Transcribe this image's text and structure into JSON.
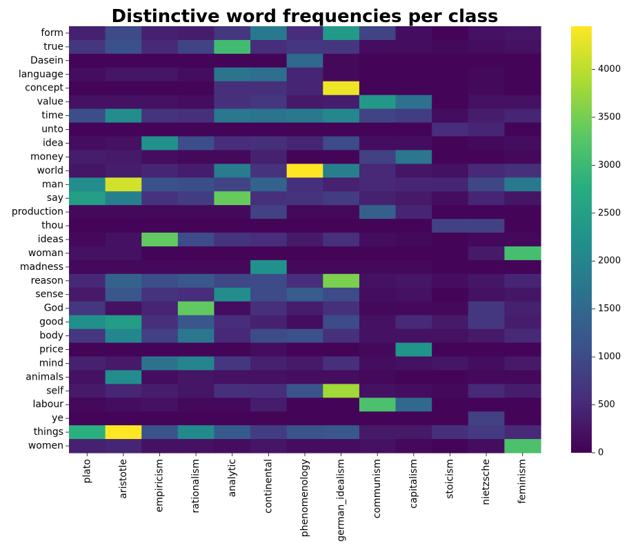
{
  "chart_data": {
    "type": "heatmap",
    "title": "Distinctive word frequencies per class",
    "xlabel": "",
    "ylabel": "",
    "colormap": "viridis",
    "vmin": 0,
    "vmax": 4450,
    "x": [
      "plato",
      "aristotle",
      "empiricism",
      "rationalism",
      "analytic",
      "continental",
      "phenomenology",
      "german_idealism",
      "communism",
      "capitalism",
      "stoicism",
      "nietzsche",
      "feminism"
    ],
    "y": [
      "form",
      "true",
      "Dasein",
      "language",
      "concept",
      "value",
      "time",
      "unto",
      "idea",
      "money",
      "world",
      "man",
      "say",
      "production",
      "thou",
      "ideas",
      "woman",
      "madness",
      "reason",
      "sense",
      "God",
      "good",
      "body",
      "price",
      "mind",
      "animals",
      "self",
      "labour",
      "ye",
      "things",
      "women"
    ],
    "values": [
      [
        400,
        1000,
        400,
        350,
        700,
        1800,
        550,
        2400,
        900,
        150,
        50,
        200,
        250
      ],
      [
        700,
        1100,
        500,
        900,
        3050,
        550,
        700,
        700,
        150,
        150,
        100,
        150,
        200
      ],
      [
        50,
        50,
        50,
        50,
        50,
        50,
        1500,
        100,
        50,
        50,
        50,
        50,
        50
      ],
      [
        150,
        250,
        250,
        150,
        1700,
        1600,
        450,
        100,
        50,
        50,
        50,
        100,
        50
      ],
      [
        50,
        50,
        50,
        50,
        600,
        600,
        450,
        4350,
        50,
        50,
        50,
        100,
        50
      ],
      [
        200,
        200,
        200,
        150,
        600,
        700,
        300,
        350,
        2350,
        1650,
        50,
        200,
        200
      ],
      [
        1050,
        2150,
        650,
        600,
        1750,
        1700,
        1800,
        2050,
        900,
        800,
        150,
        350,
        450
      ],
      [
        50,
        50,
        50,
        50,
        50,
        50,
        50,
        50,
        50,
        50,
        550,
        450,
        50
      ],
      [
        150,
        200,
        2250,
        1050,
        550,
        600,
        450,
        1000,
        150,
        150,
        50,
        100,
        150
      ],
      [
        350,
        300,
        150,
        100,
        100,
        400,
        50,
        50,
        850,
        1750,
        50,
        50,
        100
      ],
      [
        250,
        350,
        450,
        350,
        1850,
        650,
        4450,
        1900,
        500,
        250,
        200,
        500,
        600
      ],
      [
        2150,
        4150,
        1100,
        1050,
        900,
        1400,
        600,
        400,
        500,
        450,
        450,
        950,
        1800
      ],
      [
        2500,
        1900,
        650,
        800,
        3400,
        600,
        650,
        800,
        400,
        300,
        150,
        450,
        250
      ],
      [
        100,
        100,
        100,
        100,
        100,
        850,
        100,
        100,
        1350,
        450,
        50,
        50,
        50
      ],
      [
        50,
        50,
        50,
        50,
        50,
        50,
        50,
        50,
        50,
        50,
        850,
        850,
        50
      ],
      [
        100,
        200,
        3350,
        1000,
        650,
        550,
        300,
        600,
        150,
        100,
        50,
        100,
        100
      ],
      [
        200,
        200,
        50,
        50,
        50,
        50,
        50,
        50,
        50,
        50,
        50,
        300,
        3100
      ],
      [
        100,
        100,
        100,
        100,
        100,
        2250,
        100,
        100,
        100,
        100,
        50,
        50,
        50
      ],
      [
        500,
        1400,
        1050,
        1200,
        950,
        1000,
        550,
        3550,
        200,
        250,
        150,
        250,
        450
      ],
      [
        300,
        1200,
        650,
        550,
        2150,
        1000,
        1300,
        1000,
        150,
        200,
        50,
        200,
        250
      ],
      [
        700,
        200,
        450,
        3350,
        150,
        600,
        350,
        600,
        100,
        100,
        100,
        700,
        400
      ],
      [
        2200,
        2450,
        600,
        1200,
        550,
        400,
        150,
        1000,
        200,
        500,
        300,
        700,
        350
      ],
      [
        700,
        2050,
        850,
        1750,
        500,
        1000,
        1100,
        600,
        200,
        200,
        200,
        300,
        500
      ],
      [
        50,
        50,
        50,
        50,
        50,
        150,
        50,
        50,
        100,
        2300,
        50,
        50,
        50
      ],
      [
        400,
        300,
        1650,
        2000,
        700,
        400,
        300,
        600,
        150,
        200,
        250,
        150,
        300
      ],
      [
        200,
        2150,
        150,
        250,
        200,
        200,
        150,
        150,
        100,
        50,
        50,
        100,
        100
      ],
      [
        300,
        450,
        350,
        250,
        600,
        550,
        1150,
        3800,
        200,
        150,
        100,
        500,
        350
      ],
      [
        100,
        150,
        200,
        100,
        100,
        350,
        50,
        50,
        3150,
        1500,
        50,
        50,
        50
      ],
      [
        50,
        50,
        50,
        50,
        50,
        50,
        50,
        50,
        50,
        50,
        50,
        850,
        50
      ],
      [
        2800,
        4450,
        1150,
        2100,
        1250,
        800,
        1150,
        1200,
        300,
        300,
        600,
        750,
        500
      ],
      [
        400,
        450,
        200,
        200,
        150,
        250,
        150,
        150,
        200,
        100,
        50,
        150,
        3150
      ]
    ],
    "colorbar": {
      "ticks": [
        0,
        500,
        1000,
        1500,
        2000,
        2500,
        3000,
        3500,
        4000
      ]
    },
    "grid": false,
    "legend": "colorbar-right"
  }
}
